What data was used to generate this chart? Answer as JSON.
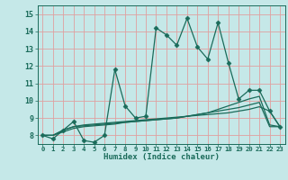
{
  "xlabel": "Humidex (Indice chaleur)",
  "xlim": [
    -0.5,
    23.5
  ],
  "ylim": [
    7.5,
    15.5
  ],
  "xticks": [
    0,
    1,
    2,
    3,
    4,
    5,
    6,
    7,
    8,
    9,
    10,
    11,
    12,
    13,
    14,
    15,
    16,
    17,
    18,
    19,
    20,
    21,
    22,
    23
  ],
  "yticks": [
    8,
    9,
    10,
    11,
    12,
    13,
    14,
    15
  ],
  "bg_color": "#c5e8e8",
  "grid_color": "#e0a0a0",
  "line_color": "#1a6b5a",
  "series": [
    {
      "y": [
        8.0,
        7.8,
        8.3,
        8.8,
        7.7,
        7.6,
        8.0,
        11.8,
        9.7,
        9.0,
        9.1,
        14.2,
        13.8,
        13.2,
        14.75,
        13.1,
        12.4,
        14.5,
        12.2,
        10.1,
        10.6,
        10.6,
        9.4,
        8.5
      ],
      "marker": "D",
      "ms": 2.5,
      "lw": 0.9,
      "zorder": 3
    },
    {
      "y": [
        8.0,
        8.0,
        8.3,
        8.5,
        8.6,
        8.65,
        8.7,
        8.75,
        8.8,
        8.85,
        8.9,
        8.95,
        9.0,
        9.05,
        9.1,
        9.15,
        9.2,
        9.25,
        9.3,
        9.4,
        9.5,
        9.65,
        9.4,
        8.5
      ],
      "marker": null,
      "ms": 0,
      "lw": 0.9,
      "zorder": 2
    },
    {
      "y": [
        8.0,
        8.0,
        8.2,
        8.4,
        8.5,
        8.55,
        8.6,
        8.65,
        8.75,
        8.8,
        8.85,
        8.9,
        8.95,
        9.0,
        9.1,
        9.2,
        9.3,
        9.4,
        9.5,
        9.6,
        9.75,
        9.9,
        8.5,
        8.5
      ],
      "marker": null,
      "ms": 0,
      "lw": 0.9,
      "zorder": 2
    },
    {
      "y": [
        8.0,
        8.0,
        8.3,
        8.5,
        8.55,
        8.6,
        8.65,
        8.7,
        8.75,
        8.8,
        8.85,
        8.9,
        8.95,
        9.0,
        9.1,
        9.2,
        9.3,
        9.5,
        9.7,
        9.9,
        10.1,
        10.25,
        8.6,
        8.5
      ],
      "marker": null,
      "ms": 0,
      "lw": 0.9,
      "zorder": 2
    }
  ]
}
